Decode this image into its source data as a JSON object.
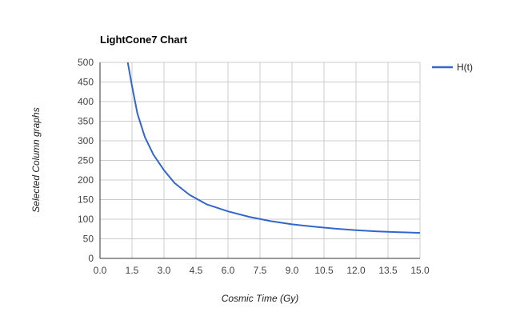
{
  "chart_data": {
    "type": "line",
    "title": "LightCone7 Chart",
    "xlabel": "Cosmic Time (Gy)",
    "ylabel": "Selected Column graphs",
    "xlim": [
      0,
      15
    ],
    "ylim": [
      0,
      500
    ],
    "x_ticks": [
      "0.0",
      "1.5",
      "3.0",
      "4.5",
      "6.0",
      "7.5",
      "9.0",
      "10.5",
      "12.0",
      "13.5",
      "15.0"
    ],
    "y_ticks": [
      "0",
      "50",
      "100",
      "150",
      "200",
      "250",
      "300",
      "350",
      "400",
      "450",
      "500"
    ],
    "grid": true,
    "legend_position": "top-right",
    "series": [
      {
        "name": "H(t)",
        "color": "#3366cc",
        "x": [
          1.3,
          1.5,
          1.75,
          2.1,
          2.5,
          3.0,
          3.5,
          4.2,
          5.0,
          6.0,
          7.0,
          8.0,
          9.0,
          10.0,
          11.0,
          12.0,
          13.0,
          14.0,
          15.0
        ],
        "y": [
          500,
          440,
          370,
          310,
          265,
          225,
          192,
          162,
          138,
          120,
          106,
          95,
          87,
          81,
          76,
          72,
          69,
          67,
          65
        ]
      }
    ]
  }
}
